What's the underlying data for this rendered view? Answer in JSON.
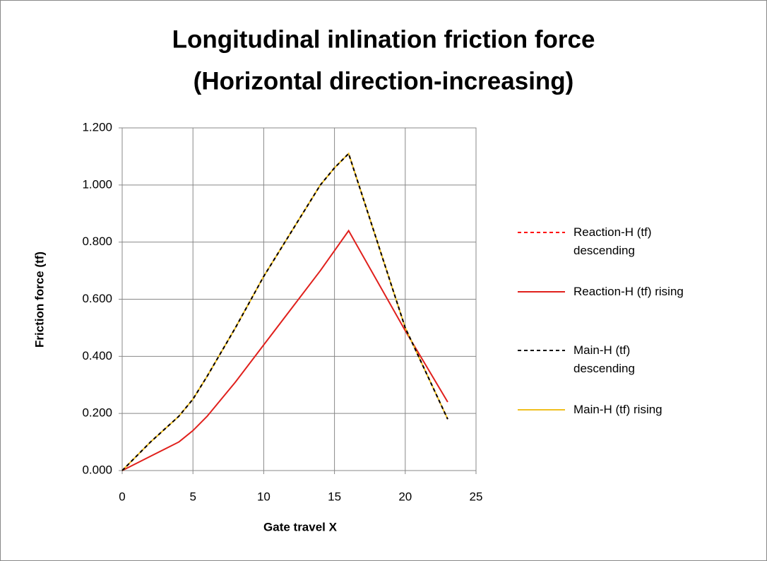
{
  "chart_data": {
    "type": "line",
    "title": [
      "Longitudinal inlination friction force",
      "(Horizontal direction-increasing)"
    ],
    "x_label": "Gate travel X",
    "y_label": "Friction force (tf)",
    "x": [
      0,
      2,
      4,
      5,
      6,
      8,
      10,
      12,
      14,
      15,
      16,
      20,
      23
    ],
    "series": [
      {
        "name": "Reaction-H (tf) descending",
        "color": "#ff0000",
        "dash": true,
        "values": [
          0,
          0.1,
          0.19,
          0.25,
          0.33,
          0.5,
          0.68,
          0.84,
          1.0,
          1.06,
          1.11,
          0.5,
          0.18
        ]
      },
      {
        "name": "Reaction-H (tf) rising",
        "color": "#e0201c",
        "dash": false,
        "values": [
          0,
          0.05,
          0.1,
          0.14,
          0.19,
          0.31,
          0.44,
          0.57,
          0.7,
          0.77,
          0.84,
          0.49,
          0.24
        ]
      },
      {
        "name": "Main-H (tf) descending",
        "color": "#000000",
        "dash": true,
        "values": [
          0,
          0.1,
          0.19,
          0.25,
          0.33,
          0.5,
          0.68,
          0.84,
          1.0,
          1.06,
          1.11,
          0.5,
          0.18
        ]
      },
      {
        "name": "Main-H (tf) rising",
        "color": "#f0c020",
        "dash": false,
        "values": [
          0,
          0.1,
          0.19,
          0.25,
          0.33,
          0.5,
          0.68,
          0.84,
          1.0,
          1.06,
          1.11,
          0.5,
          0.18
        ]
      }
    ],
    "xlim": [
      0,
      25
    ],
    "xticks": [
      0,
      5,
      10,
      15,
      20,
      25
    ],
    "ylim": [
      0,
      1.2
    ],
    "yticks": [
      {
        "value": 0,
        "label": "0.000"
      },
      {
        "value": 0.2,
        "label": "0.200"
      },
      {
        "value": 0.4,
        "label": "0.400"
      },
      {
        "value": 0.6,
        "label": "0.600"
      },
      {
        "value": 0.8,
        "label": "0.800"
      },
      {
        "value": 1.0,
        "label": "1.000"
      },
      {
        "value": 1.2,
        "label": "1.200"
      }
    ],
    "grid": true,
    "legend": "right"
  }
}
